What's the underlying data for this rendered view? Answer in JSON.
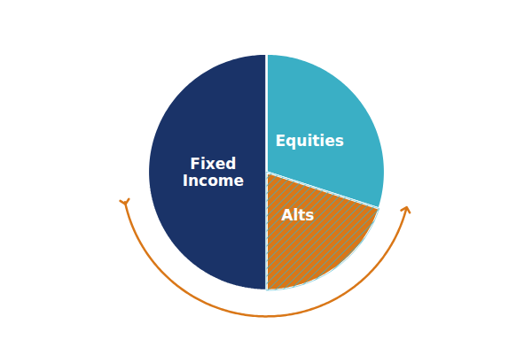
{
  "chart_data": {
    "type": "pie",
    "categories": [
      "Equities",
      "Alts",
      "Fixed\nIncome"
    ],
    "values": [
      30,
      20,
      50
    ],
    "colors": [
      "#3aafc5",
      "#d97718",
      "#1a3368"
    ],
    "tick_labels": false
  }
}
